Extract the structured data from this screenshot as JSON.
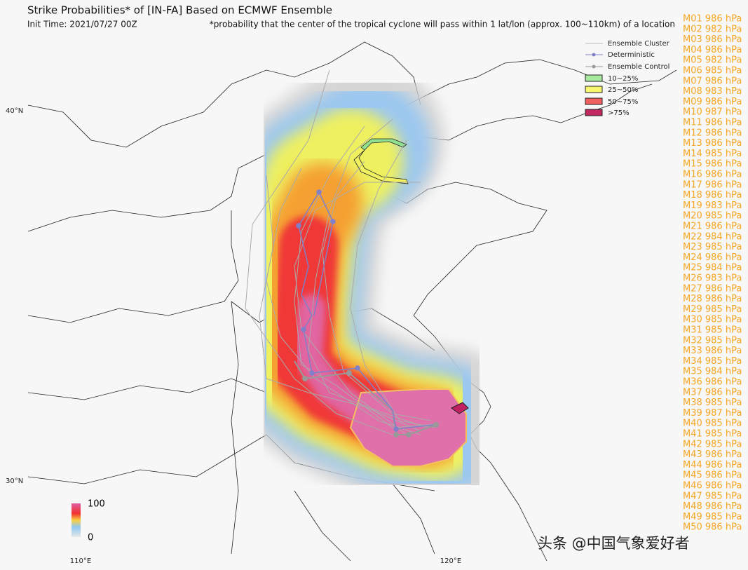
{
  "header": {
    "title": "Strike Probabilities* of [IN-FA] Based on ECMWF Ensemble",
    "init_time": "Init Time: 2021/07/27 00Z",
    "footnote": "*probability that the center of the tropical cyclone will pass within 1 lat/lon (approx. 100~110km) of a location"
  },
  "legend": [
    "Ensemble Cluster",
    "Deterministic",
    "Ensemble Control",
    "10~25%",
    "25~50%",
    "50~75%",
    ">75%"
  ],
  "axes": {
    "lat": [
      "40°N",
      "30°N"
    ],
    "lon": [
      "110°E",
      "120°E"
    ]
  },
  "colorbar": {
    "max": "100",
    "min": "0"
  },
  "members": [
    "M01 986 hPa",
    "M02 982 hPa",
    "M03 986 hPa",
    "M04 986 hPa",
    "M05 982 hPa",
    "M06 985 hPa",
    "M07 986 hPa",
    "M08 983 hPa",
    "M09 986 hPa",
    "M10 987 hPa",
    "M11 986 hPa",
    "M12 986 hPa",
    "M13 986 hPa",
    "M14 985 hPa",
    "M15 986 hPa",
    "M16 986 hPa",
    "M17 986 hPa",
    "M18 986 hPa",
    "M19 983 hPa",
    "M20 985 hPa",
    "M21 986 hPa",
    "M22 984 hPa",
    "M23 985 hPa",
    "M24 986 hPa",
    "M25 984 hPa",
    "M26 983 hPa",
    "M27 986 hPa",
    "M28 986 hPa",
    "M29 985 hPa",
    "M30 985 hPa",
    "M31 985 hPa",
    "M32 985 hPa",
    "M33 986 hPa",
    "M34 985 hPa",
    "M35 984 hPa",
    "M36 986 hPa",
    "M37 986 hPa",
    "M38 985 hPa",
    "M39 987 hPa",
    "M40 985 hPa",
    "M41 985 hPa",
    "M42 985 hPa",
    "M43 986 hPa",
    "M44 986 hPa",
    "M45 986 hPa",
    "M46 986 hPa",
    "M47 985 hPa",
    "M48 986 hPa",
    "M49 985 hPa",
    "M50 986 hPa"
  ],
  "watermark": "头条 @中国气象爱好者"
}
